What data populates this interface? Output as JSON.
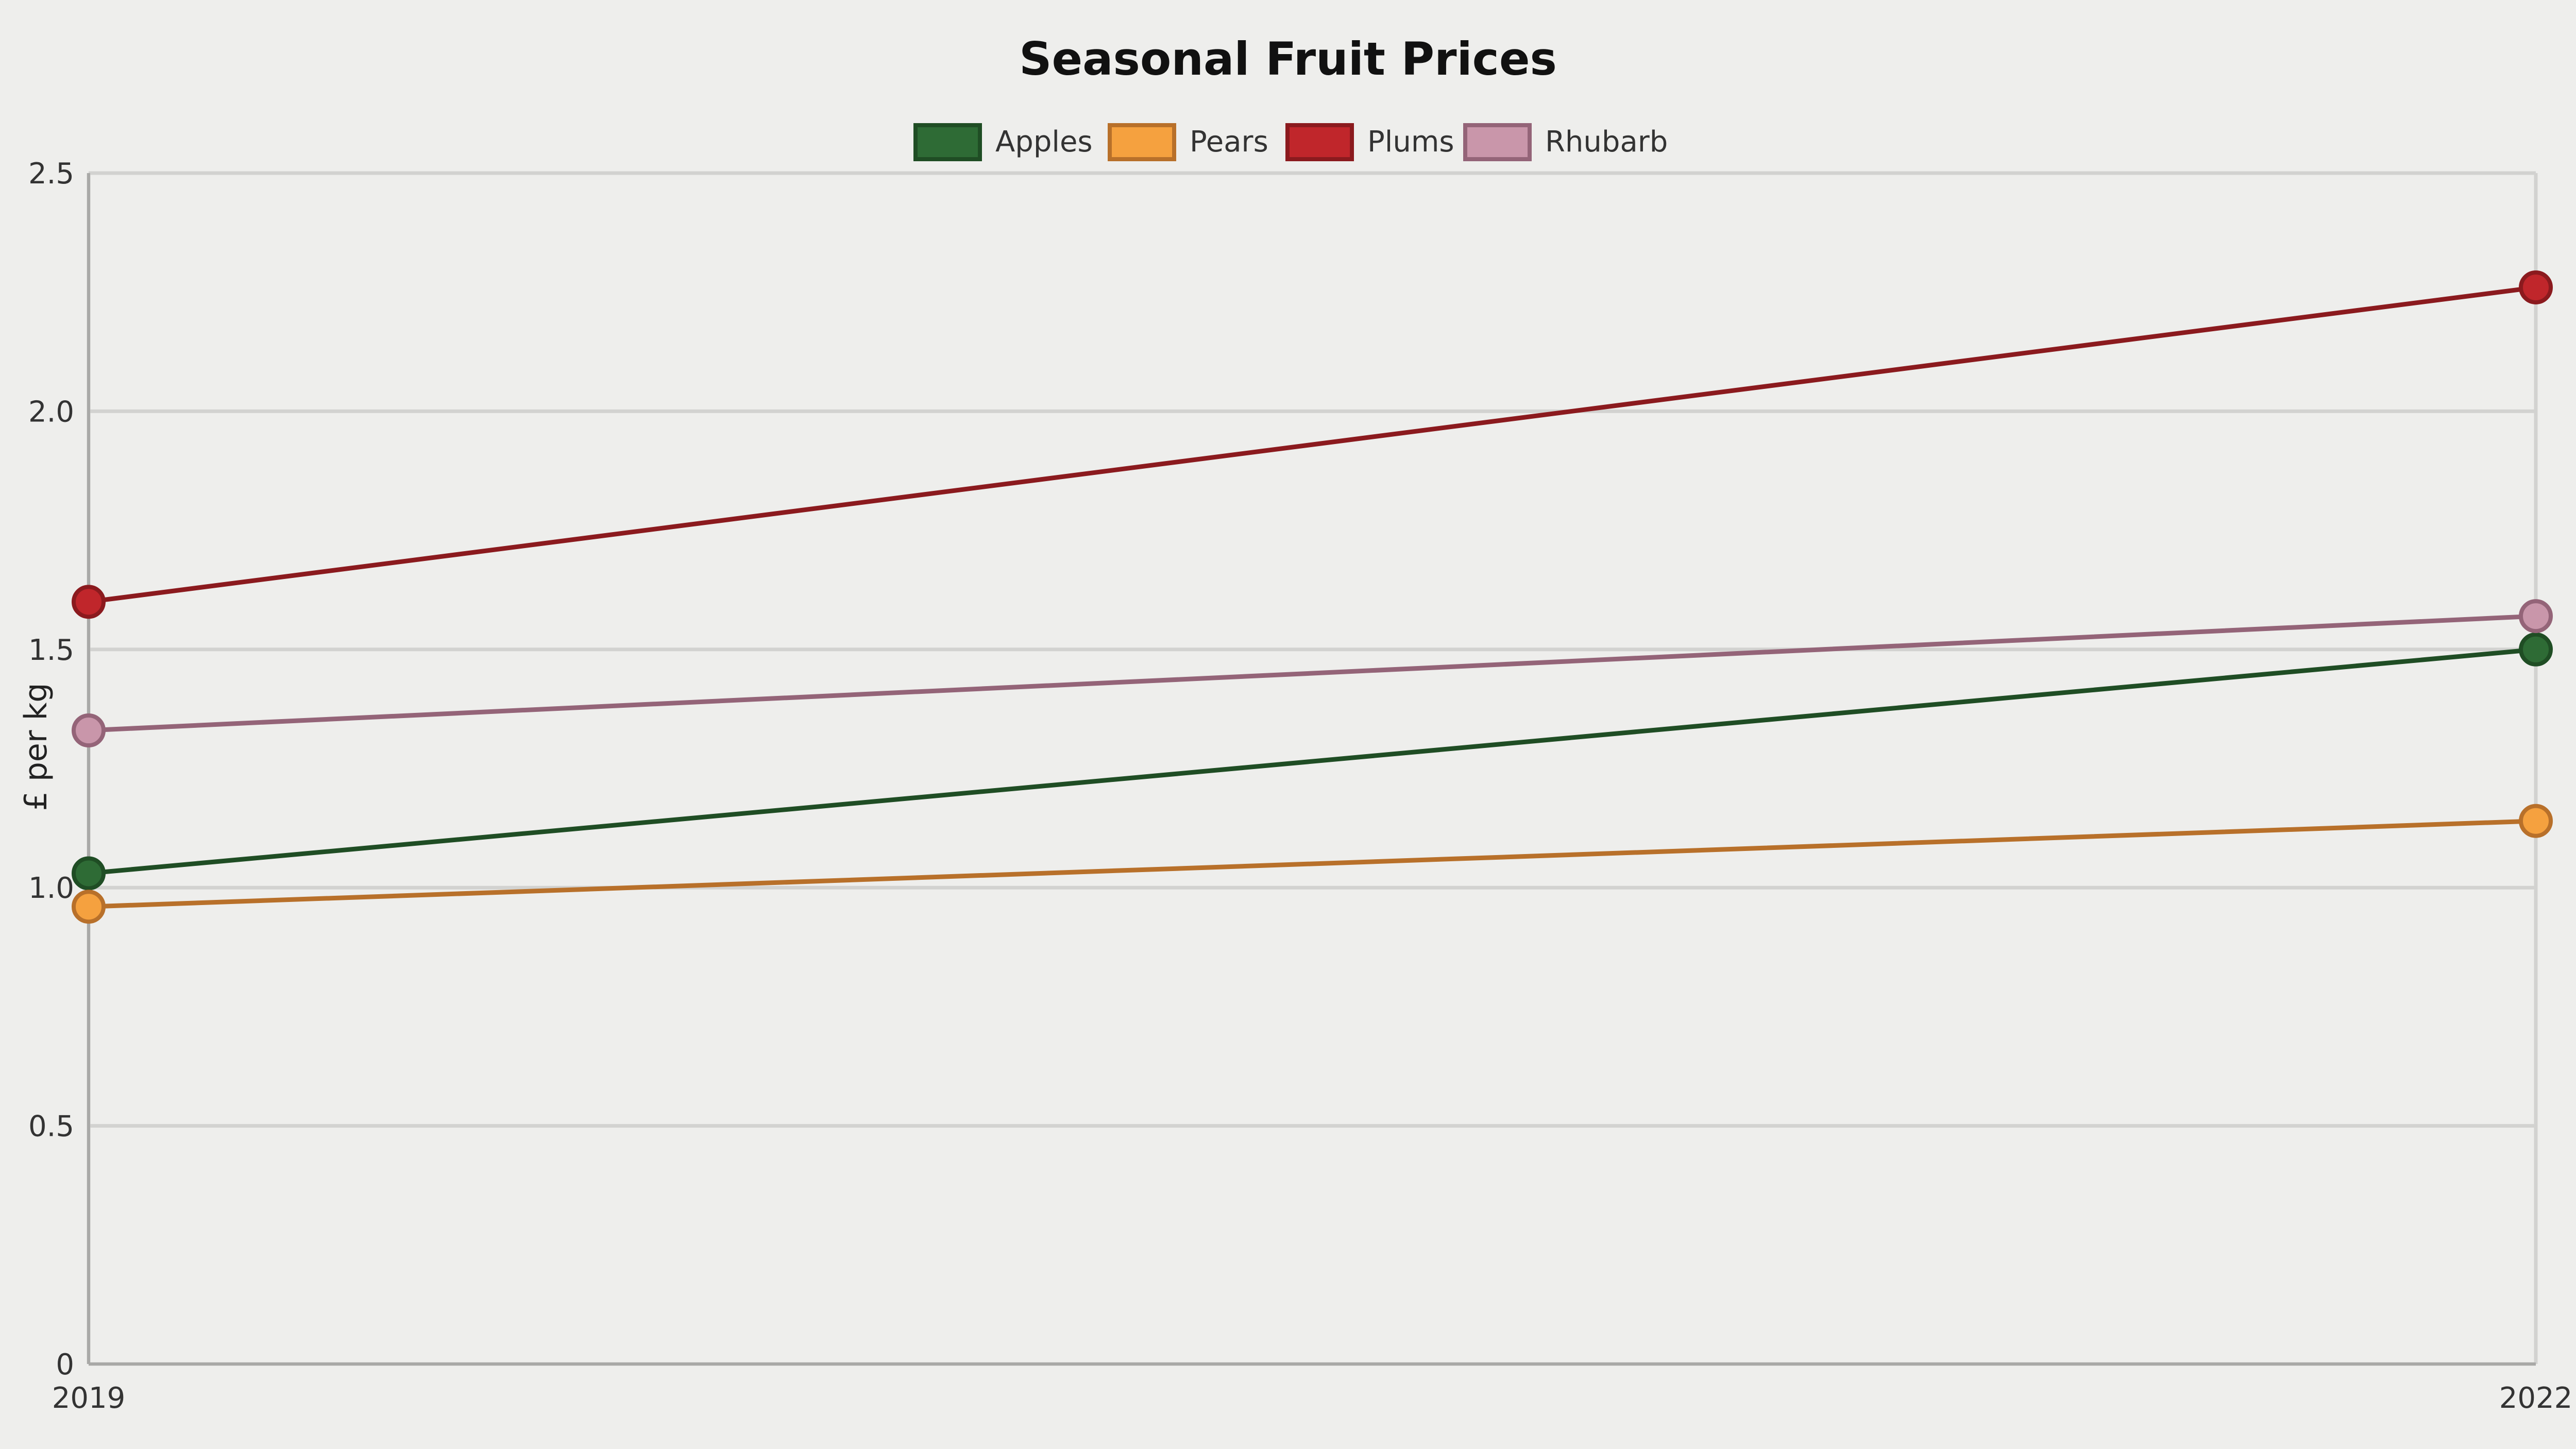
{
  "chart_data": {
    "type": "line",
    "title": "Seasonal Fruit Prices",
    "xlabel": "",
    "ylabel": "£ per kg",
    "x": [
      "2019",
      "2022"
    ],
    "ylim": [
      0,
      2.5
    ],
    "yticks": [
      "0",
      "0.5",
      "1.0",
      "1.5",
      "2.0",
      "2.5"
    ],
    "grid": true,
    "legend_position": "top-center",
    "series": [
      {
        "name": "Apples",
        "values": [
          1.03,
          1.5
        ],
        "color": "#1f4d24",
        "fill": "#2e6b35"
      },
      {
        "name": "Pears",
        "values": [
          0.96,
          1.14
        ],
        "color": "#b8702a",
        "fill": "#f5a13f"
      },
      {
        "name": "Plums",
        "values": [
          1.6,
          2.26
        ],
        "color": "#8b1a1e",
        "fill": "#c0262b"
      },
      {
        "name": "Rhubarb",
        "values": [
          1.33,
          1.57
        ],
        "color": "#946478",
        "fill": "#c996aa"
      }
    ]
  }
}
